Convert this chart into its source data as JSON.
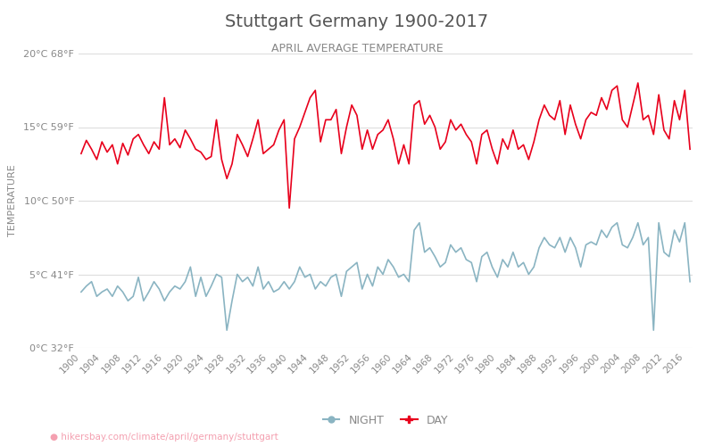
{
  "title": "Stuttgart Germany 1900-2017",
  "subtitle": "APRIL AVERAGE TEMPERATURE",
  "ylabel": "TEMPERATURE",
  "xlabel_url": "hikersbay.com/climate/april/germany/stuttgart",
  "years": [
    1900,
    1901,
    1902,
    1903,
    1904,
    1905,
    1906,
    1907,
    1908,
    1909,
    1910,
    1911,
    1912,
    1913,
    1914,
    1915,
    1916,
    1917,
    1918,
    1919,
    1920,
    1921,
    1922,
    1923,
    1924,
    1925,
    1926,
    1927,
    1928,
    1929,
    1930,
    1931,
    1932,
    1933,
    1934,
    1935,
    1936,
    1937,
    1938,
    1939,
    1940,
    1941,
    1942,
    1943,
    1944,
    1945,
    1946,
    1947,
    1948,
    1949,
    1950,
    1951,
    1952,
    1953,
    1954,
    1955,
    1956,
    1957,
    1958,
    1959,
    1960,
    1961,
    1962,
    1963,
    1964,
    1965,
    1966,
    1967,
    1968,
    1969,
    1970,
    1971,
    1972,
    1973,
    1974,
    1975,
    1976,
    1977,
    1978,
    1979,
    1980,
    1981,
    1982,
    1983,
    1984,
    1985,
    1986,
    1987,
    1988,
    1989,
    1990,
    1991,
    1992,
    1993,
    1994,
    1995,
    1996,
    1997,
    1998,
    1999,
    2000,
    2001,
    2002,
    2003,
    2004,
    2005,
    2006,
    2007,
    2008,
    2009,
    2010,
    2011,
    2012,
    2013,
    2014,
    2015,
    2016,
    2017
  ],
  "day_temps": [
    13.2,
    14.1,
    13.5,
    12.8,
    14.0,
    13.3,
    13.8,
    12.5,
    13.9,
    13.1,
    14.2,
    14.5,
    13.8,
    13.2,
    14.0,
    13.5,
    17.0,
    13.8,
    14.2,
    13.6,
    14.8,
    14.2,
    13.5,
    13.3,
    12.8,
    13.0,
    15.5,
    12.8,
    11.5,
    12.5,
    14.5,
    13.8,
    13.0,
    14.2,
    15.5,
    13.2,
    13.5,
    13.8,
    14.8,
    15.5,
    9.5,
    14.2,
    15.0,
    16.0,
    17.0,
    17.5,
    14.0,
    15.5,
    15.5,
    16.2,
    13.2,
    15.0,
    16.5,
    15.8,
    13.5,
    14.8,
    13.5,
    14.5,
    14.8,
    15.5,
    14.2,
    12.5,
    13.8,
    12.5,
    16.5,
    16.8,
    15.2,
    15.8,
    15.0,
    13.5,
    14.0,
    15.5,
    14.8,
    15.2,
    14.5,
    14.0,
    12.5,
    14.5,
    14.8,
    13.5,
    12.5,
    14.2,
    13.5,
    14.8,
    13.5,
    13.8,
    12.8,
    14.0,
    15.5,
    16.5,
    15.8,
    15.5,
    16.8,
    14.5,
    16.5,
    15.2,
    14.2,
    15.5,
    16.0,
    15.8,
    17.0,
    16.2,
    17.5,
    17.8,
    15.5,
    15.0,
    16.5,
    18.0,
    15.5,
    15.8,
    14.5,
    17.2,
    14.8,
    14.2,
    16.8,
    15.5,
    17.5,
    13.5
  ],
  "night_temps": [
    3.8,
    4.2,
    4.5,
    3.5,
    3.8,
    4.0,
    3.5,
    4.2,
    3.8,
    3.2,
    3.5,
    4.8,
    3.2,
    3.8,
    4.5,
    4.0,
    3.2,
    3.8,
    4.2,
    4.0,
    4.5,
    5.5,
    3.5,
    4.8,
    3.5,
    4.2,
    5.0,
    4.8,
    1.2,
    3.2,
    5.0,
    4.5,
    4.8,
    4.2,
    5.5,
    4.0,
    4.5,
    3.8,
    4.0,
    4.5,
    4.0,
    4.5,
    5.5,
    4.8,
    5.0,
    4.0,
    4.5,
    4.2,
    4.8,
    5.0,
    3.5,
    5.2,
    5.5,
    5.8,
    4.0,
    5.0,
    4.2,
    5.5,
    5.0,
    6.0,
    5.5,
    4.8,
    5.0,
    4.5,
    8.0,
    8.5,
    6.5,
    6.8,
    6.2,
    5.5,
    5.8,
    7.0,
    6.5,
    6.8,
    6.0,
    5.8,
    4.5,
    6.2,
    6.5,
    5.5,
    4.8,
    6.0,
    5.5,
    6.5,
    5.5,
    5.8,
    5.0,
    5.5,
    6.8,
    7.5,
    7.0,
    6.8,
    7.5,
    6.5,
    7.5,
    6.8,
    5.5,
    7.0,
    7.2,
    7.0,
    8.0,
    7.5,
    8.2,
    8.5,
    7.0,
    6.8,
    7.5,
    8.5,
    7.0,
    7.5,
    1.2,
    8.5,
    6.5,
    6.2,
    8.0,
    7.2,
    8.5,
    4.5
  ],
  "ylim": [
    0,
    20
  ],
  "yticks_c": [
    0,
    5,
    10,
    15,
    20
  ],
  "yticks_f": [
    32,
    41,
    50,
    59,
    68
  ],
  "xtick_years": [
    1900,
    1904,
    1908,
    1912,
    1916,
    1920,
    1924,
    1928,
    1932,
    1936,
    1940,
    1944,
    1948,
    1952,
    1956,
    1960,
    1964,
    1968,
    1972,
    1976,
    1980,
    1984,
    1988,
    1992,
    1996,
    2000,
    2004,
    2008,
    2012,
    2016
  ],
  "day_color": "#e8001c",
  "night_color": "#8ab4c2",
  "title_color": "#555555",
  "subtitle_color": "#888888",
  "ylabel_color": "#888888",
  "tick_color": "#888888",
  "grid_color": "#dddddd",
  "url_color": "#f4a0b0",
  "bg_color": "#ffffff",
  "line_width": 1.2,
  "legend_night_color": "#8ab4c2",
  "legend_day_color": "#e8001c"
}
